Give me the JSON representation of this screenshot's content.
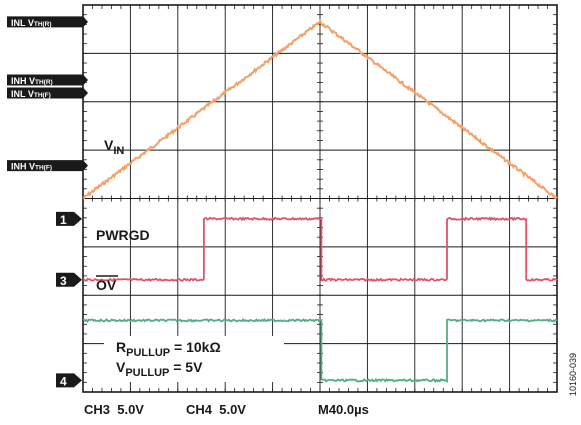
{
  "chart_data": {
    "type": "line",
    "title": "",
    "xlabel": "",
    "ylabel": "",
    "grid": true,
    "time_per_div": "M40.0µs",
    "x_divisions": 10,
    "y_divisions": 8,
    "series": [
      {
        "name": "VIN",
        "label_main": "V",
        "label_sub": "IN",
        "color": "#f4a068",
        "units": "divisions from top",
        "points": [
          [
            0,
            4.0
          ],
          [
            5.0,
            0.35
          ],
          [
            10,
            4.0
          ]
        ]
      },
      {
        "name": "PWRGD",
        "label": "PWRGD",
        "color": "#e0546a",
        "low_div": 5.68,
        "high_div": 4.42,
        "transitions": [
          2.55,
          5.03,
          7.68,
          9.35
        ],
        "start_level": "low"
      },
      {
        "name": "OV",
        "label": "OV",
        "color": "#55ad84",
        "high_div": 6.52,
        "low_div": 7.76,
        "transitions": [
          5.03,
          7.68
        ],
        "start_level": "high"
      }
    ],
    "left_markers": [
      {
        "text": "INL V",
        "sub": "TH(R)",
        "div": 0.35
      },
      {
        "text": "INH V",
        "sub": "TH(R)",
        "div": 1.55
      },
      {
        "text": "INL V",
        "sub": "TH(F)",
        "div": 1.82
      },
      {
        "text": "INH V",
        "sub": "TH(F)",
        "div": 3.32
      }
    ],
    "channel_markers": [
      {
        "text": "1",
        "div": 4.42
      },
      {
        "text": "3",
        "div": 5.68
      },
      {
        "text": "4",
        "div": 7.76
      }
    ],
    "annotations": {
      "r_main": "R",
      "r_sub": "PULLUP",
      "r_value": " = 10kΩ",
      "v_main": "V",
      "v_sub": "PULLUP",
      "v_value": " = 5V"
    },
    "bottom_labels": {
      "ch3": "CH3  5.0V",
      "ch4": "CH4  5.0V",
      "time": "M40.0µs"
    },
    "figure_id": "10160-039"
  }
}
